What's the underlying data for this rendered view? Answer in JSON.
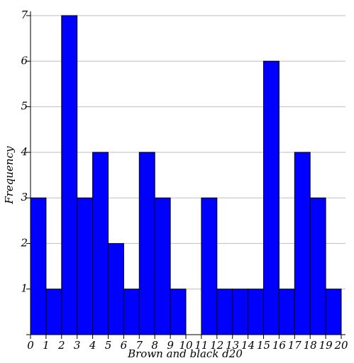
{
  "chart_data": {
    "type": "bar",
    "title": "",
    "xlabel": "Brown and black d20",
    "ylabel": "Frequency",
    "x_ticks": [
      "0",
      "1",
      "2",
      "3",
      "4",
      "5",
      "6",
      "7",
      "8",
      "9",
      "10",
      "11",
      "12",
      "13",
      "14",
      "15",
      "16",
      "17",
      "18",
      "19",
      "20"
    ],
    "y_ticks": [
      "1",
      "2",
      "3",
      "4",
      "5",
      "6",
      "7"
    ],
    "bins": [
      {
        "x0": 0,
        "x1": 1,
        "value": 3
      },
      {
        "x0": 1,
        "x1": 2,
        "value": 1
      },
      {
        "x0": 2,
        "x1": 3,
        "value": 7
      },
      {
        "x0": 3,
        "x1": 4,
        "value": 3
      },
      {
        "x0": 4,
        "x1": 5,
        "value": 4
      },
      {
        "x0": 5,
        "x1": 6,
        "value": 2
      },
      {
        "x0": 6,
        "x1": 7,
        "value": 1
      },
      {
        "x0": 7,
        "x1": 8,
        "value": 4
      },
      {
        "x0": 8,
        "x1": 9,
        "value": 3
      },
      {
        "x0": 9,
        "x1": 10,
        "value": 1
      },
      {
        "x0": 10,
        "x1": 11,
        "value": 0
      },
      {
        "x0": 11,
        "x1": 12,
        "value": 3
      },
      {
        "x0": 12,
        "x1": 13,
        "value": 1
      },
      {
        "x0": 13,
        "x1": 14,
        "value": 1
      },
      {
        "x0": 14,
        "x1": 15,
        "value": 1
      },
      {
        "x0": 15,
        "x1": 16,
        "value": 6
      },
      {
        "x0": 16,
        "x1": 17,
        "value": 1
      },
      {
        "x0": 17,
        "x1": 18,
        "value": 4
      },
      {
        "x0": 18,
        "x1": 19,
        "value": 3
      },
      {
        "x0": 19,
        "x1": 20,
        "value": 1
      }
    ],
    "xlim": [
      0,
      20
    ],
    "ylim": [
      0,
      7
    ],
    "grid": "horizontal",
    "legend": "none",
    "bar_color": "#0000ff",
    "bar_edge_color": "#000000",
    "grid_color": "#bebebe",
    "axis_color": "#000000"
  }
}
